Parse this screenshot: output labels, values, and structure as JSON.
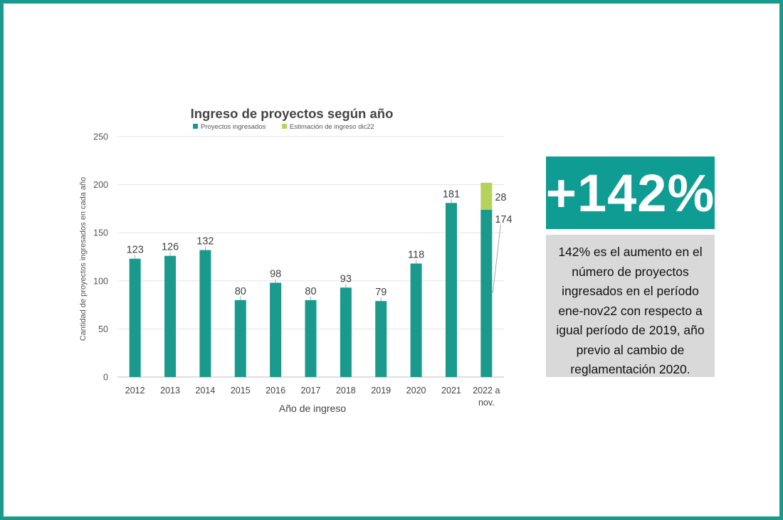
{
  "colors": {
    "frame": "#1a998d",
    "primary": "#1a998d",
    "estimate": "#b5d35c",
    "stat_box": "#0e9c93",
    "desc_box": "#d9d9d9"
  },
  "chart_data": {
    "type": "bar",
    "stacked": true,
    "title": "Ingreso de proyectos según año",
    "xlabel": "Año de ingreso",
    "ylabel": "Cantidad de proyectos ingresados en cada año",
    "ylim": [
      0,
      250
    ],
    "yticks": [
      0,
      50,
      100,
      150,
      200,
      250
    ],
    "grid": true,
    "legend_position": "top",
    "categories": [
      "2012",
      "2013",
      "2014",
      "2015",
      "2016",
      "2017",
      "2018",
      "2019",
      "2020",
      "2021",
      "2022 a nov."
    ],
    "series": [
      {
        "name": "Proyectos ingresados",
        "color": "#1a998d",
        "values": [
          123,
          126,
          132,
          80,
          98,
          80,
          93,
          79,
          118,
          181,
          174
        ]
      },
      {
        "name": "Estimación de ingreso dic22",
        "color": "#b5d35c",
        "values": [
          0,
          0,
          0,
          0,
          0,
          0,
          0,
          0,
          0,
          0,
          28
        ]
      }
    ]
  },
  "highlight": {
    "stat": "+142%",
    "description": "142% es el aumento en el número de proyectos ingresados en el período ene-nov22 con respecto a igual período de 2019, año previo al cambio de reglamentación 2020."
  }
}
